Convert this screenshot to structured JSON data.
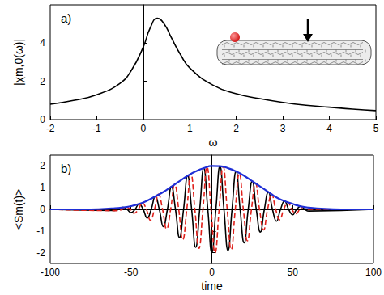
{
  "chart_data": [
    {
      "type": "line",
      "title": "a)",
      "x_label": "ω",
      "y_label": "|χm,0(ω)|",
      "xlim": [
        -2,
        5
      ],
      "xticks": [
        -2,
        -1,
        0,
        1,
        2,
        3,
        4,
        5
      ],
      "ylim": [
        0,
        6
      ],
      "yticks": [
        0,
        2,
        4
      ],
      "x": [
        -2,
        -1.5,
        -1,
        -0.5,
        -0.25,
        0,
        0.15,
        0.3,
        0.45,
        0.6,
        0.8,
        1,
        1.5,
        2,
        2.5,
        3,
        3.5,
        4,
        4.5,
        5
      ],
      "series": [
        {
          "color": "#000000",
          "line_style": "solid",
          "values": [
            0.8,
            1.0,
            1.3,
            1.9,
            2.6,
            3.8,
            4.8,
            5.3,
            5.0,
            4.3,
            3.4,
            2.7,
            1.8,
            1.35,
            1.1,
            0.9,
            0.75,
            0.65,
            0.55,
            0.47
          ]
        }
      ]
    },
    {
      "type": "line",
      "title": "b)",
      "x_label": "time",
      "y_label": "<Sm(t)>",
      "xlim": [
        -100,
        100
      ],
      "xticks": [
        -100,
        -50,
        0,
        50,
        100
      ],
      "ylim": [
        -2.5,
        2.5
      ],
      "yticks": [
        -2,
        -1,
        0,
        1,
        2
      ],
      "series": [
        {
          "color": "#000000",
          "line_style": "solid",
          "x": [
            -100,
            -60,
            -57.5,
            -55,
            -52.5,
            -50,
            -47.5,
            -45,
            -42.5,
            -40,
            -37.5,
            -35,
            -32.5,
            -30,
            -27.5,
            -25,
            -22.5,
            -20,
            -17.5,
            -15,
            -12.5,
            -10,
            -7.5,
            -5,
            -2.5,
            0,
            2.5,
            5,
            7.5,
            10,
            12.5,
            15,
            17.5,
            20,
            22.5,
            25,
            27.5,
            30,
            32.5,
            35,
            37.5,
            40,
            42.5,
            45,
            47.5,
            50,
            52.5,
            55,
            57.5,
            60,
            100
          ],
          "values": [
            0,
            -0.05,
            0,
            0.09,
            0,
            -0.15,
            0,
            0.25,
            0,
            -0.4,
            0,
            0.6,
            0,
            -0.8,
            0,
            1.05,
            0,
            -1.3,
            0,
            1.55,
            0,
            -1.75,
            0,
            1.9,
            0,
            -2.0,
            0,
            1.99,
            0,
            -1.9,
            0,
            1.75,
            0,
            -1.55,
            0,
            1.3,
            0,
            -1.05,
            0,
            0.8,
            0,
            -0.55,
            0,
            0.38,
            0,
            -0.25,
            0,
            0.14,
            0,
            -0.08,
            0
          ]
        },
        {
          "color": "#e0201b",
          "line_style": "dashed",
          "x": [
            -100,
            -58,
            -55.5,
            -53,
            -50.5,
            -48,
            -45.5,
            -43,
            -40.5,
            -38,
            -35.5,
            -33,
            -30.5,
            -28,
            -25.5,
            -23,
            -20.5,
            -18,
            -15.5,
            -13,
            -10.5,
            -8,
            -5.5,
            -3,
            -0.5,
            2,
            4.5,
            7,
            9.5,
            12,
            14.5,
            17,
            19.5,
            22,
            24.5,
            27,
            29.5,
            32,
            34.5,
            37,
            39.5,
            42,
            44.5,
            47,
            49.5,
            52,
            54.5,
            57,
            59.5,
            100
          ],
          "values": [
            0,
            -0.06,
            0,
            0.1,
            0,
            -0.18,
            0,
            0.3,
            0,
            -0.5,
            0,
            0.7,
            0,
            -0.9,
            0,
            1.15,
            0,
            -1.4,
            0,
            1.65,
            0,
            -1.8,
            0,
            1.95,
            0,
            -2.0,
            0,
            1.97,
            0,
            -1.85,
            0,
            1.65,
            0,
            -1.45,
            0,
            1.2,
            0,
            -0.95,
            0,
            0.7,
            0,
            -0.48,
            0,
            0.32,
            0,
            -0.2,
            0,
            0.11,
            0,
            0
          ]
        },
        {
          "color": "#1f2fd6",
          "line_style": "solid",
          "x": [
            -100,
            -80,
            -70,
            -60,
            -55,
            -50,
            -45,
            -40,
            -35,
            -30,
            -25,
            -20,
            -15,
            -10,
            -5,
            0,
            5,
            10,
            15,
            20,
            25,
            30,
            35,
            40,
            45,
            50,
            55,
            60,
            70,
            80,
            100
          ],
          "values": [
            0,
            0,
            0.01,
            0.05,
            0.09,
            0.15,
            0.25,
            0.4,
            0.6,
            0.8,
            1.05,
            1.3,
            1.55,
            1.75,
            1.9,
            2.0,
            1.99,
            1.9,
            1.75,
            1.55,
            1.3,
            1.05,
            0.8,
            0.55,
            0.38,
            0.25,
            0.14,
            0.08,
            0.02,
            0,
            0
          ]
        }
      ]
    }
  ]
}
